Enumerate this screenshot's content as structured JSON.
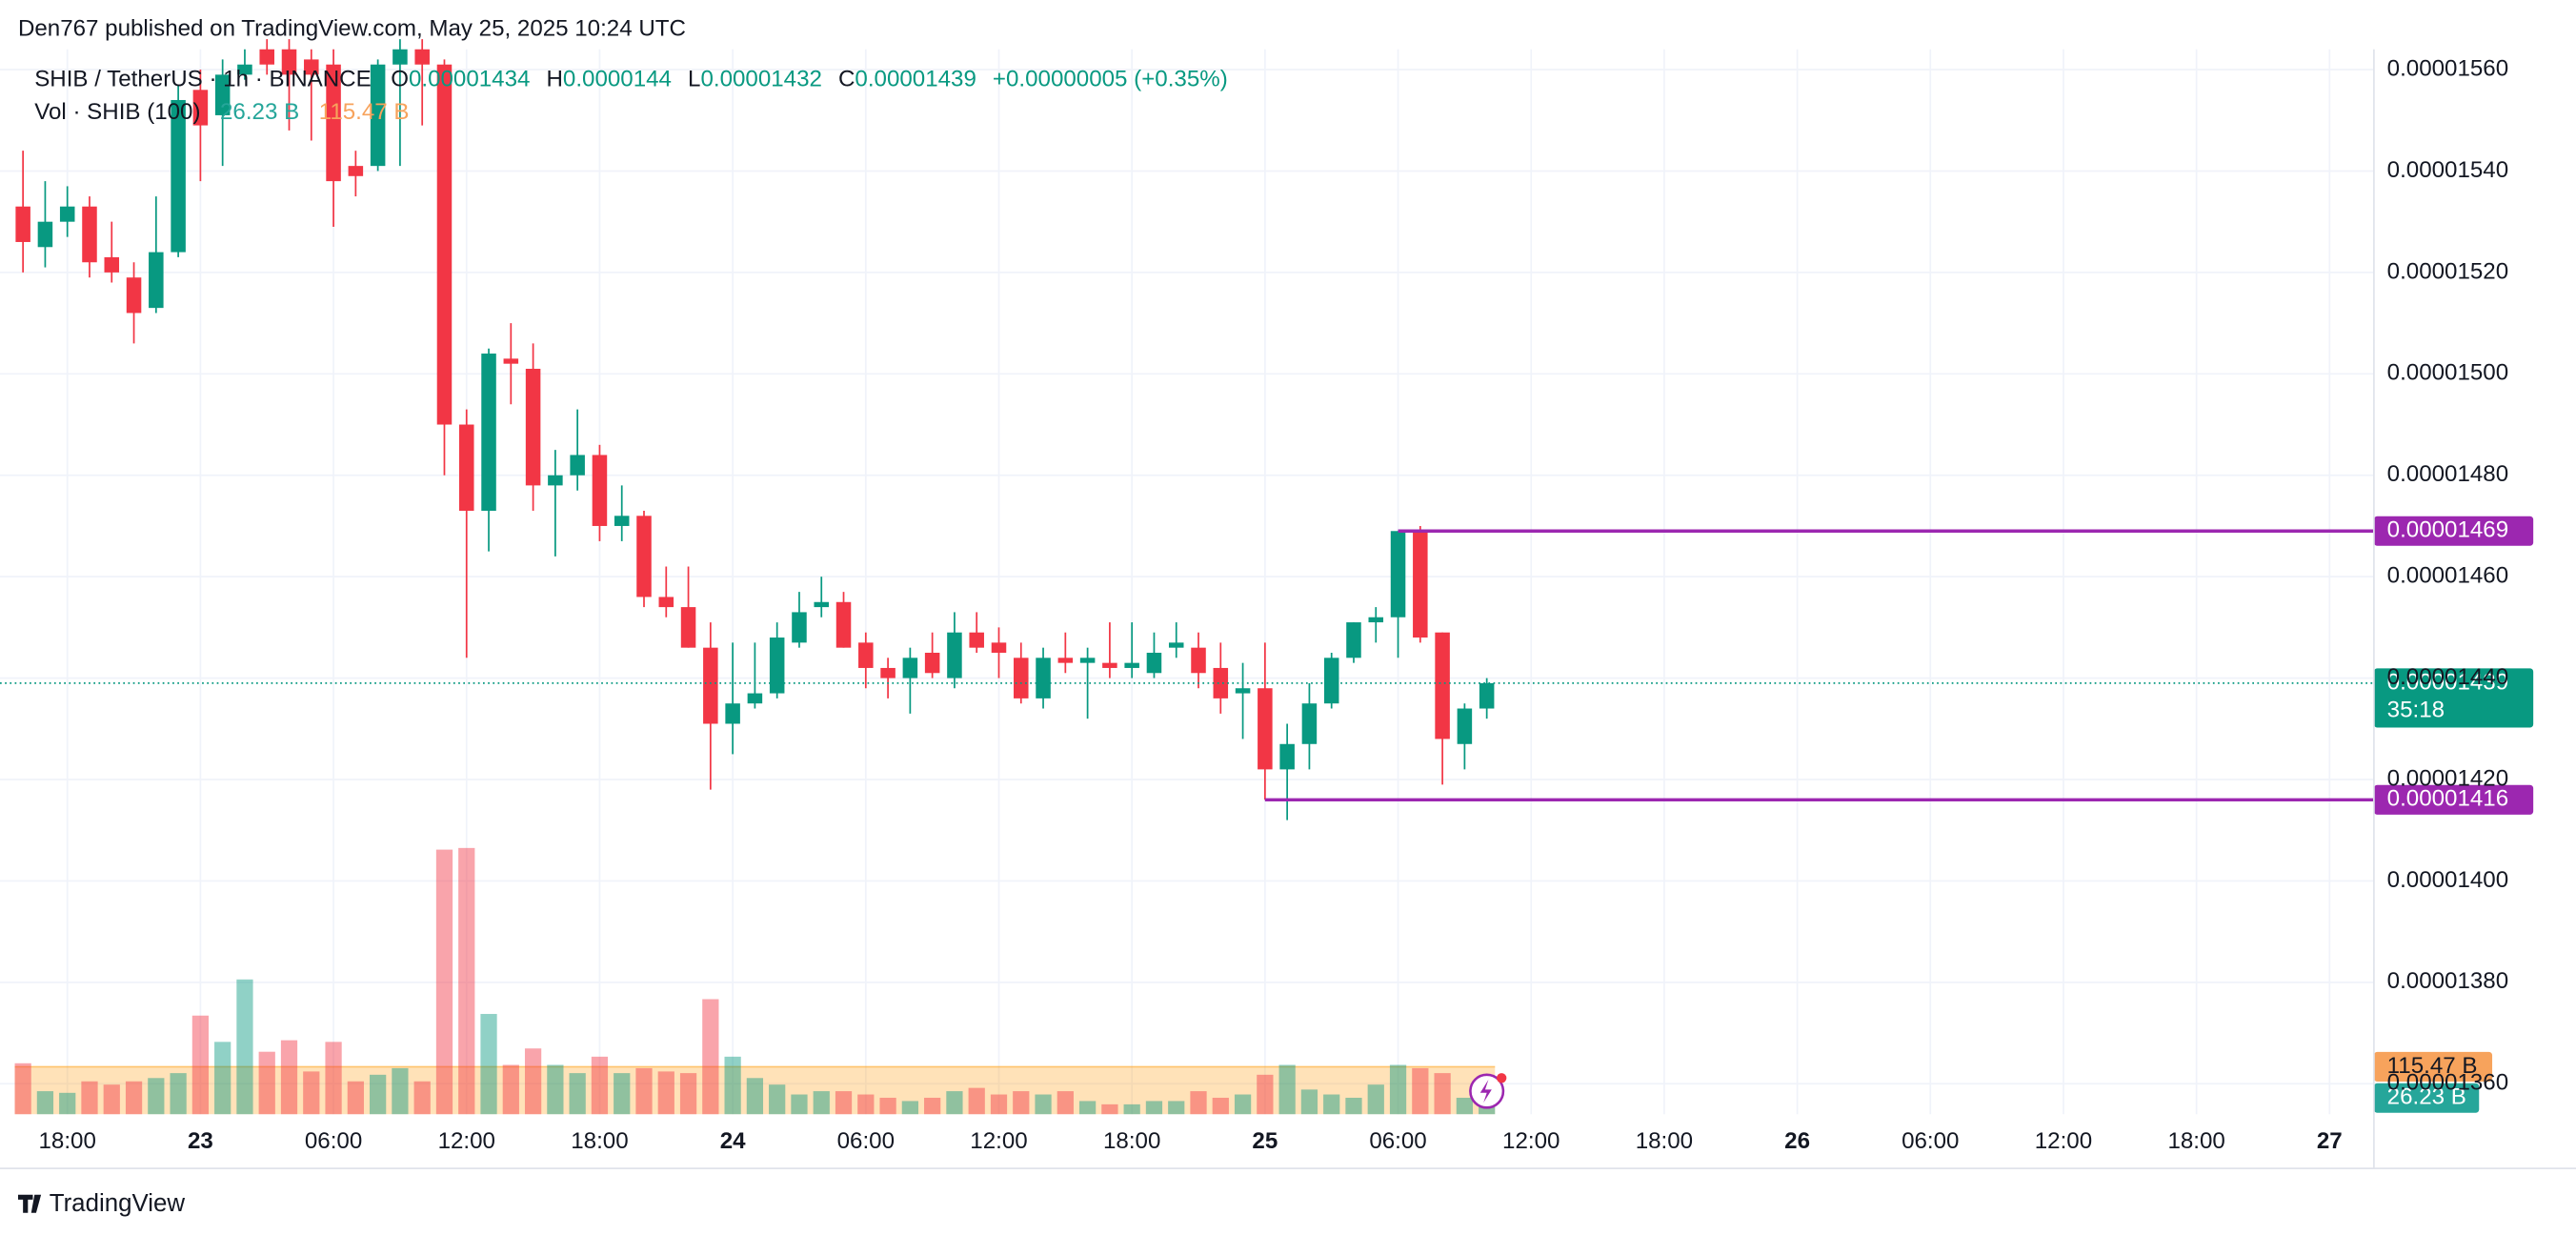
{
  "header": "Den767 published on TradingView.com, May 25, 2025 10:24 UTC",
  "footer": "TradingView",
  "chart_data": {
    "type": "candlestick",
    "title": "SHIB / TetherUS · 1h · BINANCE",
    "legend": {
      "o": "O",
      "h": "H",
      "l": "L",
      "c": "C",
      "change": "+0.00000005 (+0.35%)"
    },
    "up_color": "#089981",
    "down_color": "#f23645",
    "open": [
      1.533e-05,
      1.525e-05,
      1.53e-05,
      1.533e-05,
      1.523e-05,
      1.519e-05,
      1.513e-05,
      1.524e-05,
      1.556e-05,
      1.551e-05,
      1.559e-05,
      1.564e-05,
      1.564e-05,
      1.562e-05,
      1.561e-05,
      1.541e-05,
      1.541e-05,
      1.561e-05,
      1.564e-05,
      1.561e-05,
      1.49e-05,
      1.473e-05,
      1.503e-05,
      1.501e-05,
      1.478e-05,
      1.48e-05,
      1.484e-05,
      1.47e-05,
      1.472e-05,
      1.456e-05,
      1.454e-05,
      1.446e-05,
      1.431e-05,
      1.435e-05,
      1.437e-05,
      1.447e-05,
      1.454e-05,
      1.455e-05,
      1.447e-05,
      1.442e-05,
      1.44e-05,
      1.445e-05,
      1.44e-05,
      1.449e-05,
      1.447e-05,
      1.444e-05,
      1.436e-05,
      1.444e-05,
      1.443e-05,
      1.443e-05,
      1.442e-05,
      1.441e-05,
      1.446e-05,
      1.446e-05,
      1.442e-05,
      1.437e-05,
      1.438e-05,
      1.422e-05,
      1.427e-05,
      1.435e-05,
      1.444e-05,
      1.451e-05,
      1.452e-05,
      1.469e-05,
      1.449e-05,
      1.427e-05,
      1.434e-05
    ],
    "high": [
      1.544e-05,
      1.538e-05,
      1.537e-05,
      1.535e-05,
      1.53e-05,
      1.522e-05,
      1.535e-05,
      1.557e-05,
      1.56e-05,
      1.562e-05,
      1.564e-05,
      1.566e-05,
      1.566e-05,
      1.564e-05,
      1.564e-05,
      1.544e-05,
      1.562e-05,
      1.566e-05,
      1.566e-05,
      1.562e-05,
      1.493e-05,
      1.505e-05,
      1.51e-05,
      1.506e-05,
      1.485e-05,
      1.493e-05,
      1.486e-05,
      1.478e-05,
      1.473e-05,
      1.462e-05,
      1.462e-05,
      1.451e-05,
      1.447e-05,
      1.447e-05,
      1.451e-05,
      1.457e-05,
      1.46e-05,
      1.457e-05,
      1.449e-05,
      1.444e-05,
      1.446e-05,
      1.449e-05,
      1.453e-05,
      1.453e-05,
      1.45e-05,
      1.447e-05,
      1.446e-05,
      1.449e-05,
      1.446e-05,
      1.451e-05,
      1.451e-05,
      1.449e-05,
      1.451e-05,
      1.449e-05,
      1.447e-05,
      1.443e-05,
      1.447e-05,
      1.431e-05,
      1.439e-05,
      1.445e-05,
      1.451e-05,
      1.454e-05,
      1.469e-05,
      1.47e-05,
      1.449e-05,
      1.435e-05,
      1.44e-05
    ],
    "low": [
      1.52e-05,
      1.521e-05,
      1.527e-05,
      1.519e-05,
      1.518e-05,
      1.506e-05,
      1.512e-05,
      1.523e-05,
      1.538e-05,
      1.541e-05,
      1.558e-05,
      1.559e-05,
      1.548e-05,
      1.546e-05,
      1.529e-05,
      1.535e-05,
      1.54e-05,
      1.541e-05,
      1.549e-05,
      1.48e-05,
      1.444e-05,
      1.465e-05,
      1.494e-05,
      1.473e-05,
      1.464e-05,
      1.477e-05,
      1.467e-05,
      1.467e-05,
      1.454e-05,
      1.452e-05,
      1.446e-05,
      1.418e-05,
      1.425e-05,
      1.434e-05,
      1.436e-05,
      1.446e-05,
      1.452e-05,
      1.446e-05,
      1.438e-05,
      1.436e-05,
      1.433e-05,
      1.44e-05,
      1.438e-05,
      1.445e-05,
      1.44e-05,
      1.435e-05,
      1.434e-05,
      1.441e-05,
      1.432e-05,
      1.44e-05,
      1.44e-05,
      1.44e-05,
      1.444e-05,
      1.438e-05,
      1.433e-05,
      1.428e-05,
      1.416e-05,
      1.412e-05,
      1.422e-05,
      1.434e-05,
      1.443e-05,
      1.447e-05,
      1.444e-05,
      1.447e-05,
      1.419e-05,
      1.422e-05,
      1.432e-05
    ],
    "close": [
      1.526e-05,
      1.53e-05,
      1.533e-05,
      1.522e-05,
      1.52e-05,
      1.512e-05,
      1.524e-05,
      1.554e-05,
      1.549e-05,
      1.559e-05,
      1.561e-05,
      1.561e-05,
      1.559e-05,
      1.559e-05,
      1.538e-05,
      1.539e-05,
      1.561e-05,
      1.564e-05,
      1.561e-05,
      1.49e-05,
      1.473e-05,
      1.504e-05,
      1.502e-05,
      1.478e-05,
      1.48e-05,
      1.484e-05,
      1.47e-05,
      1.472e-05,
      1.456e-05,
      1.454e-05,
      1.446e-05,
      1.431e-05,
      1.435e-05,
      1.437e-05,
      1.448e-05,
      1.453e-05,
      1.455e-05,
      1.446e-05,
      1.442e-05,
      1.44e-05,
      1.444e-05,
      1.441e-05,
      1.449e-05,
      1.446e-05,
      1.445e-05,
      1.436e-05,
      1.444e-05,
      1.443e-05,
      1.444e-05,
      1.442e-05,
      1.443e-05,
      1.445e-05,
      1.447e-05,
      1.441e-05,
      1.436e-05,
      1.438e-05,
      1.422e-05,
      1.427e-05,
      1.435e-05,
      1.444e-05,
      1.451e-05,
      1.452e-05,
      1.469e-05,
      1.448e-05,
      1.428e-05,
      1.434e-05,
      1.439e-05
    ],
    "countdown": "35:18",
    "hlines": [
      1.469e-05,
      1.416e-05
    ],
    "hline_color": "#9c27b0",
    "volume": {
      "name": "Vol · SHIB (100)",
      "values": [
        124,
        56,
        52,
        80,
        72,
        80,
        88,
        100,
        240,
        176,
        328,
        152,
        180,
        104,
        176,
        80,
        96,
        112,
        80,
        644,
        648,
        244,
        120,
        160,
        120,
        100,
        140,
        100,
        112,
        104,
        100,
        280,
        140,
        88,
        72,
        48,
        56,
        56,
        48,
        40,
        32,
        40,
        56,
        64,
        48,
        56,
        48,
        56,
        32,
        24,
        24,
        32,
        32,
        56,
        40,
        48,
        96,
        120,
        60,
        48,
        40,
        72,
        120,
        112,
        100,
        40,
        26.23
      ],
      "last_label": "26.23 B",
      "ma": {
        "value": 115.47,
        "label": "115.47 B"
      }
    },
    "x_labels": [
      "18:00",
      "23",
      "06:00",
      "12:00",
      "18:00",
      "24",
      "06:00",
      "12:00",
      "18:00",
      "25",
      "06:00",
      "12:00",
      "18:00",
      "26",
      "06:00",
      "12:00",
      "18:00",
      "27"
    ],
    "ylim": [
      1.354e-05,
      1.564e-05
    ],
    "yticks": [
      {
        "value": 1.36e-05,
        "label": "0.00001360"
      },
      {
        "value": 1.38e-05,
        "label": "0.00001380"
      },
      {
        "value": 1.4e-05,
        "label": "0.00001400"
      },
      {
        "value": 1.42e-05,
        "label": "0.00001420"
      },
      {
        "value": 1.44e-05,
        "label": "0.00001440"
      },
      {
        "value": 1.46e-05,
        "label": "0.00001460"
      },
      {
        "value": 1.48e-05,
        "label": "0.00001480"
      },
      {
        "value": 1.5e-05,
        "label": "0.00001500"
      },
      {
        "value": 1.52e-05,
        "label": "0.00001520"
      },
      {
        "value": 1.54e-05,
        "label": "0.00001540"
      },
      {
        "value": 1.56e-05,
        "label": "0.00001560"
      }
    ],
    "grid": true
  }
}
